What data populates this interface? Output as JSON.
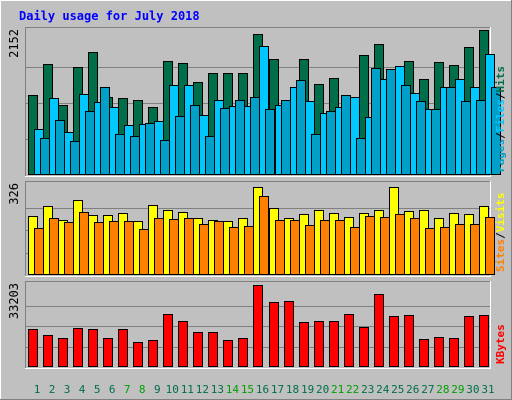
{
  "title": "Daily usage for July 2018",
  "colors": {
    "background": "#c0c0c0",
    "title": "#0000ff",
    "hits": "#006e4a",
    "files": "#00c8ff",
    "pages": "#00a0c8",
    "visits": "#ffff00",
    "sites": "#ff8000",
    "kbytes": "#ff0000",
    "day_weekday": "#006e4a",
    "day_weekend": "#00a000",
    "slash": "#000000"
  },
  "chart_data": [
    {
      "type": "bar",
      "name": "hits-files-pages",
      "categories": [
        "1",
        "2",
        "3",
        "4",
        "5",
        "6",
        "7",
        "8",
        "9",
        "10",
        "11",
        "12",
        "13",
        "14",
        "15",
        "16",
        "17",
        "18",
        "19",
        "20",
        "21",
        "22",
        "23",
        "24",
        "25",
        "26",
        "27",
        "28",
        "29",
        "30",
        "31"
      ],
      "ymax_label": "2152",
      "ylim": [
        0,
        2152
      ],
      "series": [
        {
          "name": "Hits",
          "values": [
            1195,
            1660,
            1040,
            1610,
            1840,
            1170,
            1150,
            1120,
            1020,
            1700,
            1680,
            1390,
            1530,
            1530,
            1530,
            2100,
            1730,
            1080,
            1730,
            1360,
            1450,
            1020,
            1790,
            1960,
            1320,
            1710,
            1430,
            1690,
            1650,
            1920,
            2160
          ]
        },
        {
          "name": "Files",
          "values": [
            690,
            1150,
            640,
            1210,
            1090,
            1010,
            750,
            760,
            800,
            1340,
            1350,
            900,
            1120,
            1030,
            1030,
            1930,
            1040,
            1320,
            1100,
            920,
            1010,
            1170,
            870,
            1430,
            1630,
            1220,
            980,
            1320,
            1440,
            1310,
            1810
          ]
        },
        {
          "name": "Pages",
          "values": [
            560,
            820,
            510,
            950,
            1320,
            620,
            590,
            780,
            530,
            880,
            1050,
            590,
            1000,
            1120,
            1170,
            990,
            1120,
            1420,
            620,
            950,
            1200,
            560,
            1600,
            1580,
            1350,
            1100,
            980,
            1320,
            1100,
            1120,
            1320
          ]
        }
      ]
    },
    {
      "type": "bar",
      "name": "visits-sites",
      "categories": [
        "1",
        "2",
        "3",
        "4",
        "5",
        "6",
        "7",
        "8",
        "9",
        "10",
        "11",
        "12",
        "13",
        "14",
        "15",
        "16",
        "17",
        "18",
        "19",
        "20",
        "21",
        "22",
        "23",
        "24",
        "25",
        "26",
        "27",
        "28",
        "29",
        "30",
        "31"
      ],
      "ymax_label": "326",
      "ylim": [
        0,
        326
      ],
      "series": [
        {
          "name": "Visits",
          "values": [
            212,
            250,
            198,
            272,
            218,
            218,
            223,
            195,
            254,
            235,
            228,
            205,
            200,
            195,
            208,
            318,
            242,
            208,
            222,
            237,
            225,
            210,
            225,
            236,
            318,
            232,
            235,
            206,
            225,
            220,
            250
          ]
        },
        {
          "name": "Sites",
          "values": [
            170,
            205,
            192,
            229,
            192,
            195,
            195,
            165,
            207,
            203,
            206,
            185,
            195,
            173,
            178,
            286,
            198,
            198,
            180,
            200,
            198,
            175,
            215,
            210,
            220,
            208,
            172,
            174,
            183,
            186,
            210
          ]
        }
      ]
    },
    {
      "type": "bar",
      "name": "kbytes",
      "categories": [
        "1",
        "2",
        "3",
        "4",
        "5",
        "6",
        "7",
        "8",
        "9",
        "10",
        "11",
        "12",
        "13",
        "14",
        "15",
        "16",
        "17",
        "18",
        "19",
        "20",
        "21",
        "22",
        "23",
        "24",
        "25",
        "26",
        "27",
        "28",
        "29",
        "30",
        "31"
      ],
      "ymax_label": "33203",
      "ylim": [
        0,
        33203
      ],
      "series": [
        {
          "name": "KBytes",
          "values": [
            15200,
            13000,
            11800,
            15800,
            15200,
            11600,
            15500,
            10200,
            10800,
            21500,
            18500,
            14000,
            14100,
            10800,
            11900,
            33200,
            26500,
            26700,
            18200,
            18500,
            18500,
            21400,
            16000,
            29500,
            20500,
            21200,
            11400,
            12000,
            11800,
            20800,
            21200
          ]
        }
      ]
    }
  ],
  "right_labels": {
    "top": [
      {
        "text": "Pages",
        "color": "#00a0c8"
      },
      {
        "text": "/",
        "color": "#000000"
      },
      {
        "text": "Files",
        "color": "#00c8ff"
      },
      {
        "text": "/",
        "color": "#000000"
      },
      {
        "text": "Hits",
        "color": "#006e4a"
      }
    ],
    "middle": [
      {
        "text": "Sites",
        "color": "#ff8000"
      },
      {
        "text": "/",
        "color": "#000000"
      },
      {
        "text": "Visits",
        "color": "#ffff00"
      }
    ],
    "bottom": [
      {
        "text": "KBytes",
        "color": "#ff0000"
      }
    ]
  },
  "weekend_days": [
    "7",
    "8",
    "14",
    "15",
    "21",
    "22",
    "28",
    "29"
  ]
}
